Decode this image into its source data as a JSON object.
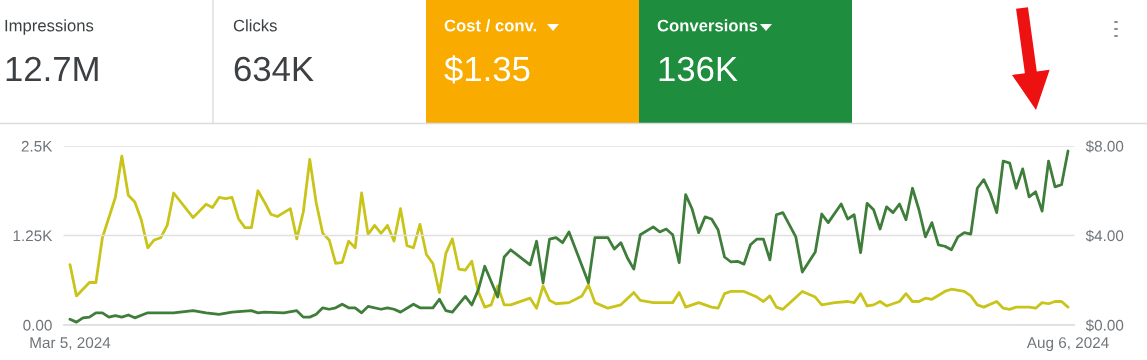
{
  "chart_data": [
    {
      "type": "other",
      "categories": [
        "Impressions",
        "Clicks",
        "Cost / conv.",
        "Conversions"
      ],
      "value_labels": [
        "12.7M",
        "634K",
        "$1.35",
        "136K"
      ],
      "colors": [
        null,
        null,
        "#f9ab00",
        "#1e8e3e"
      ]
    },
    {
      "type": "line",
      "xlim": [
        "2024-03-04",
        "2024-08-07"
      ],
      "xticks": [
        {
          "value": "2024-03-05",
          "label": "Mar 5, 2024"
        },
        {
          "value": "2024-08-06",
          "label": "Aug 6, 2024"
        }
      ],
      "ylim": [
        0,
        2500
      ],
      "yticks": [
        {
          "value": 0,
          "label": "0.00"
        },
        {
          "value": 1250,
          "label": "1.25K"
        },
        {
          "value": 2500,
          "label": "2.5K"
        }
      ],
      "y2lim": [
        0,
        8
      ],
      "y2ticks": [
        {
          "value": 0,
          "label": "$0.00"
        },
        {
          "value": 4,
          "label": "$4.00"
        },
        {
          "value": 8,
          "label": "$8.00"
        }
      ],
      "grid": "y",
      "marker": "none",
      "line_style": "solid",
      "series": [
        {
          "axis": "y2",
          "color": "#c9c41a",
          "x": [
            "2024-03-05",
            "2024-03-06",
            "2024-03-08",
            "2024-03-09",
            "2024-03-10",
            "2024-03-12",
            "2024-03-13",
            "2024-03-14",
            "2024-03-15",
            "2024-03-16",
            "2024-03-17",
            "2024-03-18",
            "2024-03-19",
            "2024-03-20",
            "2024-03-21",
            "2024-03-24",
            "2024-03-26",
            "2024-03-27",
            "2024-03-28",
            "2024-03-29",
            "2024-03-30",
            "2024-03-31",
            "2024-04-01",
            "2024-04-02",
            "2024-04-03",
            "2024-04-04",
            "2024-04-05",
            "2024-04-06",
            "2024-04-08",
            "2024-04-09",
            "2024-04-10",
            "2024-04-11",
            "2024-04-12",
            "2024-04-13",
            "2024-04-14",
            "2024-04-15",
            "2024-04-16",
            "2024-04-17",
            "2024-04-18",
            "2024-04-19",
            "2024-04-20",
            "2024-04-21",
            "2024-04-22",
            "2024-04-23",
            "2024-04-24",
            "2024-04-25",
            "2024-04-26",
            "2024-04-27",
            "2024-04-28",
            "2024-04-29",
            "2024-04-30",
            "2024-05-01",
            "2024-05-02",
            "2024-05-03",
            "2024-05-04",
            "2024-05-05",
            "2024-05-06",
            "2024-05-07",
            "2024-05-08",
            "2024-05-09",
            "2024-05-10",
            "2024-05-11",
            "2024-05-12",
            "2024-05-13",
            "2024-05-15",
            "2024-05-16",
            "2024-05-17",
            "2024-05-18",
            "2024-05-19",
            "2024-05-21",
            "2024-05-23",
            "2024-05-24",
            "2024-05-25",
            "2024-05-27",
            "2024-05-29",
            "2024-05-31",
            "2024-06-01",
            "2024-06-03",
            "2024-06-06",
            "2024-06-07",
            "2024-06-08",
            "2024-06-10",
            "2024-06-12",
            "2024-06-13",
            "2024-06-14",
            "2024-06-15",
            "2024-06-16",
            "2024-06-17",
            "2024-06-19",
            "2024-06-20",
            "2024-06-21",
            "2024-06-22",
            "2024-06-23",
            "2024-06-26",
            "2024-06-28",
            "2024-06-29",
            "2024-07-01",
            "2024-07-03",
            "2024-07-04",
            "2024-07-05",
            "2024-07-06",
            "2024-07-07",
            "2024-07-08",
            "2024-07-09",
            "2024-07-11",
            "2024-07-12",
            "2024-07-13",
            "2024-07-14",
            "2024-07-15",
            "2024-07-16",
            "2024-07-18",
            "2024-07-19",
            "2024-07-21",
            "2024-07-22",
            "2024-07-23",
            "2024-07-24",
            "2024-07-26",
            "2024-07-27",
            "2024-07-28",
            "2024-07-29",
            "2024-07-31",
            "2024-08-01",
            "2024-08-02",
            "2024-08-03",
            "2024-08-04",
            "2024-08-05",
            "2024-08-06"
          ],
          "values": [
            2.7,
            1.3,
            1.9,
            1.9,
            3.9,
            5.7,
            7.55,
            5.8,
            5.5,
            4.7,
            3.45,
            3.8,
            3.9,
            4.45,
            5.9,
            4.8,
            5.4,
            5.25,
            5.7,
            5.65,
            5.7,
            4.75,
            4.35,
            4.35,
            6.0,
            5.5,
            4.95,
            4.85,
            5.2,
            3.85,
            5.05,
            7.4,
            5.45,
            4.1,
            3.8,
            2.75,
            2.8,
            3.75,
            3.45,
            5.9,
            4.05,
            4.45,
            4.1,
            4.45,
            3.75,
            5.2,
            3.55,
            3.45,
            4.5,
            3.15,
            2.75,
            1.45,
            3.2,
            3.85,
            2.5,
            2.45,
            2.85,
            1.5,
            0.8,
            0.9,
            1.75,
            0.9,
            0.9,
            1.0,
            1.2,
            0.75,
            1.75,
            1.1,
            0.95,
            1.0,
            1.3,
            1.8,
            1.0,
            0.75,
            0.9,
            1.45,
            1.1,
            1.0,
            1.0,
            1.45,
            0.8,
            1.0,
            0.8,
            0.75,
            1.4,
            1.5,
            1.5,
            1.5,
            1.25,
            1.05,
            1.3,
            0.8,
            0.7,
            1.5,
            1.25,
            0.9,
            1.0,
            1.05,
            1.0,
            1.4,
            0.85,
            0.9,
            1.05,
            0.85,
            1.05,
            1.4,
            1.05,
            1.05,
            1.2,
            1.15,
            1.5,
            1.6,
            1.5,
            1.3,
            0.9,
            0.8,
            1.05,
            0.75,
            0.7,
            0.8,
            0.8,
            0.75,
            1.0,
            0.95,
            1.05,
            1.05,
            0.8
          ]
        },
        {
          "color": "#3f7d3a",
          "x": [
            "2024-03-05",
            "2024-03-06",
            "2024-03-07",
            "2024-03-08",
            "2024-03-09",
            "2024-03-10",
            "2024-03-11",
            "2024-03-12",
            "2024-03-13",
            "2024-03-14",
            "2024-03-15",
            "2024-03-17",
            "2024-03-19",
            "2024-03-21",
            "2024-03-24",
            "2024-03-26",
            "2024-03-28",
            "2024-03-30",
            "2024-04-02",
            "2024-04-03",
            "2024-04-04",
            "2024-04-07",
            "2024-04-09",
            "2024-04-10",
            "2024-04-11",
            "2024-04-12",
            "2024-04-13",
            "2024-04-14",
            "2024-04-15",
            "2024-04-16",
            "2024-04-17",
            "2024-04-18",
            "2024-04-19",
            "2024-04-20",
            "2024-04-22",
            "2024-04-23",
            "2024-04-24",
            "2024-04-25",
            "2024-04-27",
            "2024-04-28",
            "2024-04-30",
            "2024-05-01",
            "2024-05-02",
            "2024-05-03",
            "2024-05-05",
            "2024-05-06",
            "2024-05-07",
            "2024-05-08",
            "2024-05-10",
            "2024-05-11",
            "2024-05-12",
            "2024-05-14",
            "2024-05-15",
            "2024-05-16",
            "2024-05-17",
            "2024-05-18",
            "2024-05-19",
            "2024-05-20",
            "2024-05-21",
            "2024-05-24",
            "2024-05-25",
            "2024-05-27",
            "2024-05-28",
            "2024-05-29",
            "2024-05-30",
            "2024-05-31",
            "2024-06-01",
            "2024-06-03",
            "2024-06-04",
            "2024-06-05",
            "2024-06-06",
            "2024-06-07",
            "2024-06-08",
            "2024-06-09",
            "2024-06-10",
            "2024-06-11",
            "2024-06-12",
            "2024-06-13",
            "2024-06-14",
            "2024-06-15",
            "2024-06-16",
            "2024-06-17",
            "2024-06-18",
            "2024-06-19",
            "2024-06-20",
            "2024-06-21",
            "2024-06-22",
            "2024-06-23",
            "2024-06-25",
            "2024-06-26",
            "2024-06-28",
            "2024-06-29",
            "2024-06-30",
            "2024-07-02",
            "2024-07-03",
            "2024-07-04",
            "2024-07-05",
            "2024-07-06",
            "2024-07-07",
            "2024-07-08",
            "2024-07-09",
            "2024-07-10",
            "2024-07-11",
            "2024-07-12",
            "2024-07-13",
            "2024-07-14",
            "2024-07-15",
            "2024-07-16",
            "2024-07-17",
            "2024-07-18",
            "2024-07-19",
            "2024-07-20",
            "2024-07-21",
            "2024-07-22",
            "2024-07-23",
            "2024-07-24",
            "2024-07-25",
            "2024-07-26",
            "2024-07-27",
            "2024-07-28",
            "2024-07-29",
            "2024-07-30",
            "2024-07-31",
            "2024-08-01",
            "2024-08-02",
            "2024-08-03",
            "2024-08-04",
            "2024-08-05",
            "2024-08-06"
          ],
          "values": [
            80,
            40,
            100,
            110,
            170,
            170,
            110,
            130,
            110,
            140,
            100,
            170,
            170,
            170,
            200,
            170,
            150,
            180,
            200,
            170,
            180,
            170,
            200,
            110,
            110,
            150,
            240,
            220,
            240,
            290,
            240,
            240,
            170,
            260,
            220,
            240,
            220,
            180,
            290,
            240,
            240,
            360,
            200,
            180,
            400,
            280,
            490,
            820,
            390,
            950,
            1050,
            910,
            840,
            1170,
            590,
            1200,
            1220,
            1150,
            1300,
            590,
            1220,
            1220,
            1060,
            1150,
            940,
            780,
            1260,
            1370,
            1300,
            1340,
            1260,
            870,
            1820,
            1620,
            1290,
            1510,
            1480,
            1330,
            950,
            880,
            890,
            850,
            1120,
            1200,
            1200,
            910,
            1540,
            1570,
            1230,
            740,
            1020,
            1550,
            1430,
            1690,
            1480,
            1540,
            1010,
            1700,
            1610,
            1340,
            1650,
            1570,
            1690,
            1470,
            1910,
            1610,
            1230,
            1430,
            1120,
            1100,
            1050,
            1230,
            1290,
            1270,
            1910,
            2030,
            1840,
            1570,
            2290,
            2260,
            1910,
            2180,
            1790,
            1860,
            1590,
            2290,
            1930,
            1960,
            2430
          ]
        }
      ]
    }
  ]
}
